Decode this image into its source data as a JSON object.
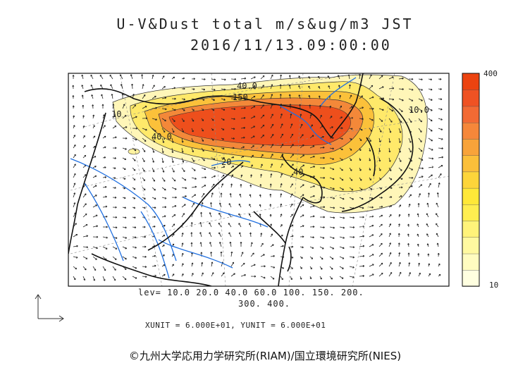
{
  "title": {
    "line1": "U-V&Dust total m/s&ug/m3 JST",
    "line2": "2016/11/13.09:00:00"
  },
  "levels": {
    "line1": "lev= 10.0 20.0 40.0 60.0 100. 150. 200.",
    "line2": "300. 400."
  },
  "units_text": "XUNIT = 6.000E+01, YUNIT = 6.000E+01",
  "credit": "©九州大学応用力学研究所(RIAM)/国立環境研究所(NIES)",
  "colorbar": {
    "max_label": "400",
    "min_label": "10",
    "colors": [
      "#ffffe0",
      "#fffcc0",
      "#fff9a0",
      "#fff37a",
      "#ffee50",
      "#ffe838",
      "#fdd53a",
      "#fbbf3a",
      "#f8a33a",
      "#f5873a",
      "#f26a34",
      "#ef5223",
      "#ec4310"
    ]
  },
  "contour_labels": [
    "40.0",
    "150",
    "10",
    "40.0",
    "20",
    "40",
    "10.0"
  ],
  "colors": {
    "coast": "#111111",
    "river": "#1f6fe0",
    "grid": "#777777",
    "vector": "#222222",
    "dust_high": "#ee4f1c",
    "dust_low": "#fff9a8"
  },
  "icons": [
    "vector-reference-icon"
  ]
}
